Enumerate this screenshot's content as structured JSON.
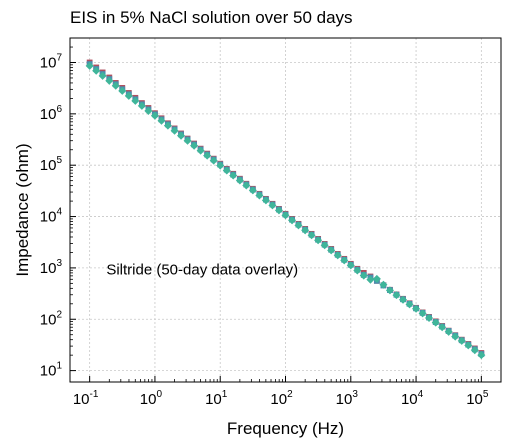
{
  "chart_data": {
    "type": "scatter",
    "title": "EIS in 5% NaCl solution over 50 days",
    "xlabel": "Frequency (Hz)",
    "ylabel": "Impedance (ohm)",
    "xscale": "log",
    "yscale": "log",
    "xlim": [
      0.05,
      200000
    ],
    "ylim": [
      6,
      30000000
    ],
    "grid": true,
    "xticks": [
      {
        "base": "10",
        "exp": "-1",
        "value": 0.1
      },
      {
        "base": "10",
        "exp": "0",
        "value": 1
      },
      {
        "base": "10",
        "exp": "1",
        "value": 10
      },
      {
        "base": "10",
        "exp": "2",
        "value": 100
      },
      {
        "base": "10",
        "exp": "3",
        "value": 1000
      },
      {
        "base": "10",
        "exp": "4",
        "value": 10000
      },
      {
        "base": "10",
        "exp": "5",
        "value": 100000
      }
    ],
    "yticks": [
      {
        "base": "10",
        "exp": "1",
        "value": 10
      },
      {
        "base": "10",
        "exp": "2",
        "value": 100
      },
      {
        "base": "10",
        "exp": "3",
        "value": 1000
      },
      {
        "base": "10",
        "exp": "4",
        "value": 10000
      },
      {
        "base": "10",
        "exp": "5",
        "value": 100000
      },
      {
        "base": "10",
        "exp": "6",
        "value": 1000000
      },
      {
        "base": "10",
        "exp": "7",
        "value": 10000000
      }
    ],
    "annotations": [
      {
        "text": "Siltride (50-day data overlay)",
        "x": 0.18,
        "y": 750
      }
    ],
    "series": [
      {
        "color": "#b05060",
        "marker": "square",
        "x": [
          0.1,
          0.126,
          0.158,
          0.2,
          0.251,
          0.316,
          0.398,
          0.501,
          0.631,
          0.794,
          1,
          1.26,
          1.58,
          2,
          2.51,
          3.16,
          3.98,
          5.01,
          6.31,
          7.94,
          10,
          12.6,
          15.8,
          20,
          25.1,
          31.6,
          39.8,
          50.1,
          63.1,
          79.4,
          100,
          126,
          158,
          200,
          251,
          316,
          398,
          501,
          631,
          794,
          1000,
          1260,
          1580,
          2000,
          2510,
          3160,
          3980,
          5010,
          6310,
          7940,
          10000,
          12600,
          15800,
          20000,
          25100,
          31600,
          39800,
          50100,
          63100,
          79400,
          100000
        ],
        "y": [
          10000000,
          8000000,
          6400000,
          5100000,
          4000000,
          3200000,
          2550000,
          2050000,
          1620000,
          1300000,
          1030000,
          820000,
          655000,
          520000,
          415000,
          330000,
          264000,
          210000,
          168000,
          134000,
          107000,
          85000,
          68000,
          54500,
          43500,
          34700,
          27700,
          22100,
          17700,
          14100,
          11300,
          9000,
          7200,
          5750,
          4600,
          3670,
          2930,
          2340,
          1870,
          1500,
          1200,
          960,
          800,
          680,
          560,
          460,
          375,
          305,
          250,
          205,
          167,
          136,
          111,
          91,
          74,
          60,
          49,
          40,
          33,
          27,
          22
        ]
      },
      {
        "color": "#4a8fb0",
        "marker": "square",
        "x": [
          0.1,
          0.126,
          0.158,
          0.2,
          0.251,
          0.316,
          0.398,
          0.501,
          0.631,
          0.794,
          1,
          1.26,
          1.58,
          2,
          2.51,
          3.16,
          3.98,
          5.01,
          6.31,
          7.94,
          10,
          12.6,
          15.8,
          20,
          25.1,
          31.6,
          39.8,
          50.1,
          63.1,
          79.4,
          100,
          126,
          158,
          200,
          251,
          316,
          398,
          501,
          631,
          794,
          1000,
          1260,
          1580,
          2000,
          2510,
          3160,
          3980,
          5010,
          6310,
          7940,
          10000,
          12600,
          15800,
          20000,
          25100,
          31600,
          39800,
          50100,
          63100,
          79400,
          100000
        ],
        "y": [
          9300000,
          7450000,
          5950000,
          4750000,
          3780000,
          3010000,
          2400000,
          1920000,
          1530000,
          1220000,
          980000,
          780000,
          625000,
          498000,
          398000,
          317000,
          253000,
          202000,
          161000,
          129000,
          103000,
          82000,
          65500,
          52500,
          42000,
          33500,
          26800,
          21400,
          17100,
          13700,
          10900,
          8700,
          6950,
          5550,
          4430,
          3540,
          2830,
          2260,
          1800,
          1440,
          1150,
          920,
          730,
          650,
          560,
          455,
          370,
          300,
          245,
          200,
          163,
          133,
          108,
          88,
          72,
          59,
          48,
          39,
          32,
          26,
          21
        ]
      },
      {
        "color": "#3fb59a",
        "marker": "diamond",
        "x": [
          0.1,
          0.126,
          0.158,
          0.2,
          0.251,
          0.316,
          0.398,
          0.501,
          0.631,
          0.794,
          1,
          1.26,
          1.58,
          2,
          2.51,
          3.16,
          3.98,
          5.01,
          6.31,
          7.94,
          10,
          12.6,
          15.8,
          20,
          25.1,
          31.6,
          39.8,
          50.1,
          63.1,
          79.4,
          100,
          126,
          158,
          200,
          251,
          316,
          398,
          501,
          631,
          794,
          1000,
          1260,
          1580,
          2000,
          2510,
          3160,
          3980,
          5010,
          6310,
          7940,
          10000,
          12600,
          15800,
          20000,
          25100,
          31600,
          39800,
          50100,
          63100,
          79400,
          100000
        ],
        "y": [
          8600000,
          6900000,
          5500000,
          4400000,
          3520000,
          2800000,
          2240000,
          1790000,
          1430000,
          1140000,
          920000,
          735000,
          590000,
          470000,
          376000,
          300000,
          240000,
          192000,
          154000,
          123000,
          98500,
          78800,
          63000,
          50500,
          40400,
          32300,
          25800,
          20700,
          16500,
          13200,
          10600,
          8450,
          6750,
          5400,
          4320,
          3450,
          2760,
          2200,
          1760,
          1400,
          1120,
          890,
          710,
          590,
          610,
          470,
          365,
          295,
          240,
          195,
          160,
          130,
          106,
          86,
          70,
          57,
          46,
          38,
          31,
          25,
          20
        ]
      }
    ]
  }
}
